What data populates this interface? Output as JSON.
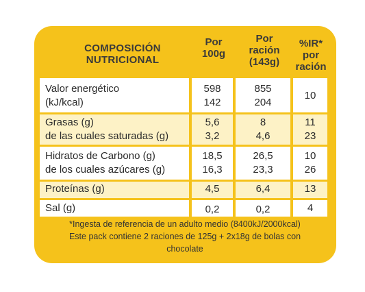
{
  "header": {
    "composicion_line1": "COMPOSICIÓN",
    "composicion_line2": "NUTRICIONAL",
    "por100_line1": "Por",
    "por100_line2": "100g",
    "porracion_line1": "Por",
    "porracion_line2": "ración",
    "porracion_line3": "(143g)",
    "ir_line1": "%IR*",
    "ir_line2": "por",
    "ir_line3": "ración"
  },
  "rows": {
    "valor": {
      "label1": "Valor energético",
      "label2": "(kJ/kcal)",
      "p100_1": "598",
      "p100_2": "142",
      "prac_1": "855",
      "prac_2": "204",
      "ir": "10"
    },
    "grasas": {
      "label1": "Grasas (g)",
      "label2": "de las cuales saturadas (g)",
      "p100_1": "5,6",
      "p100_2": "3,2",
      "prac_1": "8",
      "prac_2": "4,6",
      "ir_1": "11",
      "ir_2": "23"
    },
    "hidratos": {
      "label1": "Hidratos de Carbono (g)",
      "label2": "de los cuales azúcares (g)",
      "p100_1": "18,5",
      "p100_2": "16,3",
      "prac_1": "26,5",
      "prac_2": "23,3",
      "ir_1": "10",
      "ir_2": "26"
    },
    "proteinas": {
      "label": "Proteínas (g)",
      "p100": "4,5",
      "prac": "6,4",
      "ir": "13"
    },
    "sal": {
      "label": "Sal (g)",
      "p100": "0,2",
      "prac": "0,2",
      "ir": "4"
    }
  },
  "footer": {
    "line1": "*Ingesta de referencia de un adulto medio (8400kJ/2000kcal)",
    "line2": "Este pack contiene 2 raciones de 125g + 2x18g de bolas con",
    "line3": "chocolate"
  },
  "colors": {
    "panel": "#f5c21b",
    "white_row": "#ffffff",
    "cream_row": "#fdf2c6"
  }
}
